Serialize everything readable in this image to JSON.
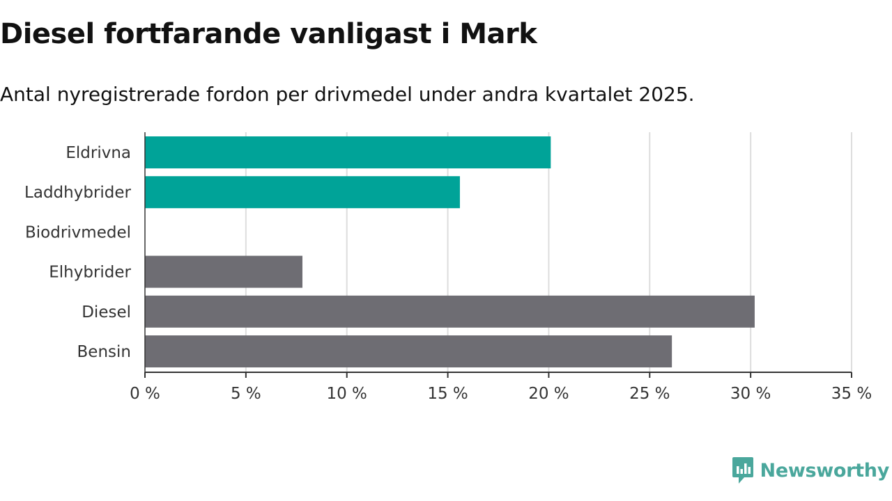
{
  "header": {
    "title": "Diesel fortfarande vanligast i Mark",
    "subtitle": "Antal nyregistrerade fordon per drivmedel under andra kvartalet 2025."
  },
  "brand": {
    "name": "Newsworthy",
    "icon": "newsworthy-logo-icon",
    "color": "#4aa79c"
  },
  "chart_data": {
    "type": "bar",
    "orientation": "horizontal",
    "categories": [
      "Eldrivna",
      "Laddhybrider",
      "Biodrivmedel",
      "Elhybrider",
      "Diesel",
      "Bensin"
    ],
    "values": [
      20.1,
      15.6,
      0,
      7.8,
      30.2,
      26.1
    ],
    "colors": [
      "#00a398",
      "#00a398",
      "#00a398",
      "#6e6d73",
      "#6e6d73",
      "#6e6d73"
    ],
    "xlim": [
      0,
      35
    ],
    "xticks": [
      0,
      5,
      10,
      15,
      20,
      25,
      30,
      35
    ],
    "tick_suffix": " %",
    "grid": true,
    "xlabel": "",
    "ylabel": ""
  }
}
